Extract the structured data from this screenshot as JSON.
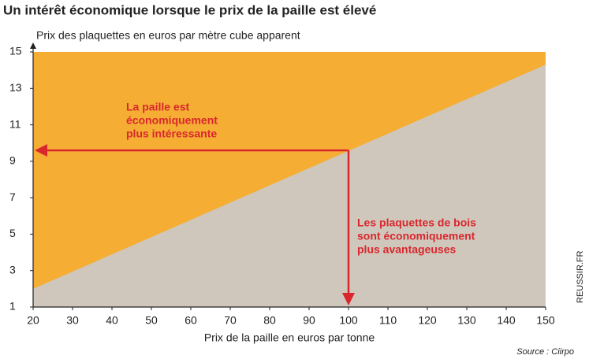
{
  "chart_data": {
    "type": "area",
    "title": "Un intérêt économique lorsque le prix de la paille est élevé",
    "y_label": "Prix des plaquettes en euros par mètre cube apparent",
    "x_label": "Prix de la paille en euros par tonne",
    "source": "Source : Ciirpo",
    "watermark": "REUSSIR.FR",
    "x": [
      20,
      150
    ],
    "values": [
      2,
      14.3
    ],
    "color_above": "#f5ae33",
    "color_below": "#d0c7bc",
    "xlim": [
      20,
      150
    ],
    "ylim": [
      1,
      15
    ],
    "xticks": [
      20,
      30,
      40,
      50,
      60,
      70,
      80,
      90,
      100,
      110,
      120,
      130,
      140,
      150
    ],
    "yticks": [
      1,
      3,
      5,
      7,
      9,
      11,
      13,
      15
    ],
    "marker": {
      "x": 100,
      "y": 9.6,
      "color": "#d9272d"
    },
    "annotations": [
      {
        "lines": [
          "La paille est",
          "économiquement",
          "plus intéressante"
        ]
      },
      {
        "lines": [
          "Les plaquettes de bois",
          "sont économiquement",
          "plus avantageuses"
        ]
      }
    ]
  }
}
